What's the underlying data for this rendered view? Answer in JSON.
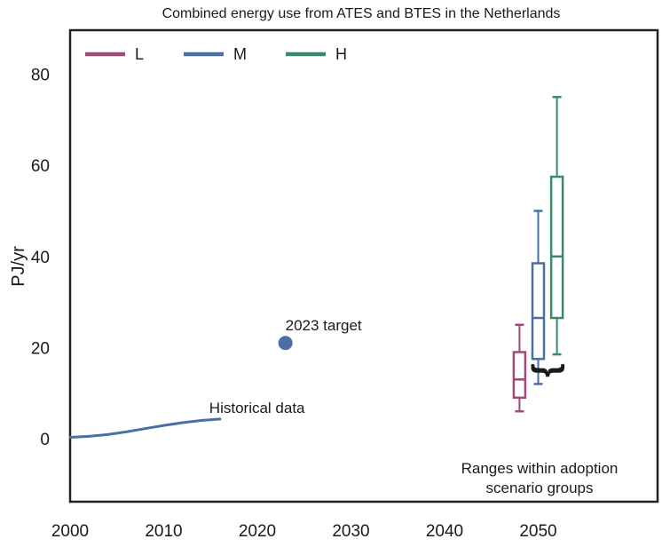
{
  "chart_data": {
    "type": "box",
    "title": "Combined energy use from ATES and BTES in the Netherlands",
    "xlabel": "",
    "ylabel": "PJ/yr",
    "xlim": [
      2000,
      2062
    ],
    "ylim": [
      -15,
      90
    ],
    "x_ticks": [
      "2000",
      "2010",
      "2020",
      "2030",
      "2040",
      "2050"
    ],
    "y_ticks": [
      "0",
      "20",
      "40",
      "60",
      "80"
    ],
    "grid": false,
    "legend_position": "top-left",
    "legend": [
      {
        "name": "L",
        "color": "#a04a78"
      },
      {
        "name": "M",
        "color": "#4a6fa5"
      },
      {
        "name": "H",
        "color": "#3a8a6a"
      }
    ],
    "historical": {
      "label": "Historical data",
      "color": "#4a6fa5",
      "x": [
        2000,
        2002,
        2004,
        2006,
        2008,
        2010,
        2012,
        2014,
        2016
      ],
      "y": [
        0.3,
        0.5,
        0.9,
        1.5,
        2.2,
        2.9,
        3.5,
        4.0,
        4.3
      ]
    },
    "target": {
      "label": "2023 target",
      "x": 2023,
      "y": 21,
      "color": "#4a6fa5"
    },
    "boxes": [
      {
        "name": "L",
        "x": 2048,
        "min": 6,
        "q1": 9,
        "median": 13,
        "q3": 19,
        "max": 25,
        "color": "#a04a78"
      },
      {
        "name": "M",
        "x": 2050,
        "min": 12,
        "q1": 17.5,
        "median": 26.5,
        "q3": 38.5,
        "max": 50,
        "color": "#4a6fa5"
      },
      {
        "name": "H",
        "x": 2052,
        "min": 18.5,
        "q1": 26.5,
        "median": 40,
        "q3": 57.5,
        "max": 75,
        "color": "#3a8a6a"
      }
    ],
    "annotation": {
      "line1": "Ranges within adoption",
      "line2": "scenario groups",
      "bracket": "}"
    }
  }
}
